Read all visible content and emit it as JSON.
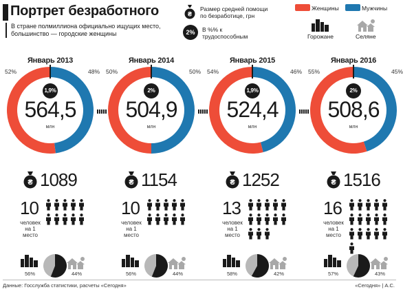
{
  "header": {
    "title": "Портрет безработного",
    "subtitle": "В стране полмиллиона официально ищущих место, большинство — городские женщины"
  },
  "legend": {
    "aid_label": "Размер средней помощи по безработице, грн",
    "percent_badge": "2%",
    "percent_label": "В %% к трудоспособным",
    "women": "Женщины",
    "men": "Мужчины",
    "urban": "Горожане",
    "rural": "Селяне"
  },
  "colors": {
    "women": "#ee4d38",
    "men": "#1f78b0",
    "dark": "#1a1a1a",
    "gray": "#b8b8b8"
  },
  "unit_mln": "млн",
  "people_label": "человек на 1 место",
  "periods": [
    {
      "year": "Январь 2013",
      "total": "564,5",
      "women_pct": "52%",
      "men_pct": "48%",
      "women_frac": 0.52,
      "rate": "1,9%",
      "aid": "1089",
      "people": "10",
      "people_count": 10,
      "urban_pct": "56%",
      "rural_pct": "44%",
      "urban_frac": 0.56
    },
    {
      "year": "Январь 2014",
      "total": "504,9",
      "women_pct": "50%",
      "men_pct": "50%",
      "women_frac": 0.5,
      "rate": "2%",
      "aid": "1154",
      "people": "10",
      "people_count": 10,
      "urban_pct": "56%",
      "rural_pct": "44%",
      "urban_frac": 0.56
    },
    {
      "year": "Январь 2015",
      "total": "524,4",
      "women_pct": "54%",
      "men_pct": "46%",
      "women_frac": 0.54,
      "rate": "1,9%",
      "aid": "1252",
      "people": "13",
      "people_count": 13,
      "urban_pct": "58%",
      "rural_pct": "42%",
      "urban_frac": 0.58
    },
    {
      "year": "Январь 2016",
      "total": "508,6",
      "women_pct": "55%",
      "men_pct": "45%",
      "women_frac": 0.55,
      "rate": "2%",
      "aid": "1516",
      "people": "16",
      "people_count": 16,
      "urban_pct": "57%",
      "rural_pct": "43%",
      "urban_frac": 0.57
    }
  ],
  "footer": {
    "source": "Данные: Госслужба статистики, расчеты «Сегодня»",
    "credit": "«Сегодня» | А.С."
  }
}
